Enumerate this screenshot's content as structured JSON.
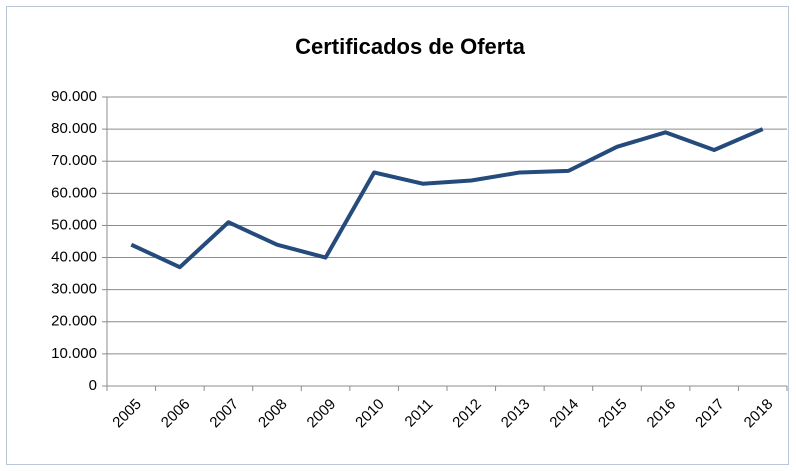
{
  "chart_data": {
    "type": "line",
    "title": "Certificados de Oferta",
    "categories": [
      "2005",
      "2006",
      "2007",
      "2008",
      "2009",
      "2010",
      "2011",
      "2012",
      "2013",
      "2014",
      "2015",
      "2016",
      "2017",
      "2018"
    ],
    "values": [
      44000,
      37000,
      51000,
      44000,
      40000,
      66500,
      63000,
      64000,
      66500,
      67000,
      74500,
      79000,
      73500,
      80000
    ],
    "color": "#254a7c",
    "ylim": [
      0,
      90000
    ],
    "yticks": [
      0,
      {
        "value": 10000,
        "label": "10.000"
      },
      {
        "value": 20000,
        "label": "20.000"
      },
      {
        "value": 30000,
        "label": "30.000"
      },
      {
        "value": 40000,
        "label": "40.000"
      },
      {
        "value": 50000,
        "label": "50.000"
      },
      {
        "value": 60000,
        "label": "60.000"
      },
      {
        "value": 70000,
        "label": "70.000"
      },
      {
        "value": 80000,
        "label": "80.000"
      },
      {
        "value": 90000,
        "label": "90.000"
      }
    ],
    "grid": true
  }
}
